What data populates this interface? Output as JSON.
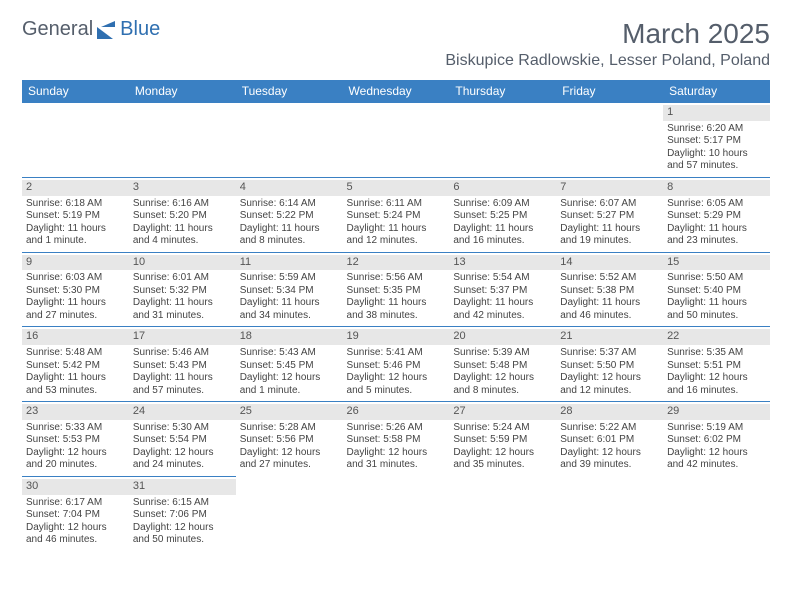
{
  "logo": {
    "part1": "General",
    "part2": "Blue",
    "color1": "#555e6b",
    "color2": "#2f6fb0"
  },
  "title": "March 2025",
  "location": "Biskupice Radlowskie, Lesser Poland, Poland",
  "colors": {
    "header_bg": "#3a80c3",
    "header_fg": "#ffffff",
    "daynum_bg": "#e7e7e7",
    "border": "#3a80c3"
  },
  "day_headers": [
    "Sunday",
    "Monday",
    "Tuesday",
    "Wednesday",
    "Thursday",
    "Friday",
    "Saturday"
  ],
  "weeks": [
    [
      null,
      null,
      null,
      null,
      null,
      null,
      {
        "n": "1",
        "sr": "Sunrise: 6:20 AM",
        "ss": "Sunset: 5:17 PM",
        "dl": "Daylight: 10 hours and 57 minutes."
      }
    ],
    [
      {
        "n": "2",
        "sr": "Sunrise: 6:18 AM",
        "ss": "Sunset: 5:19 PM",
        "dl": "Daylight: 11 hours and 1 minute."
      },
      {
        "n": "3",
        "sr": "Sunrise: 6:16 AM",
        "ss": "Sunset: 5:20 PM",
        "dl": "Daylight: 11 hours and 4 minutes."
      },
      {
        "n": "4",
        "sr": "Sunrise: 6:14 AM",
        "ss": "Sunset: 5:22 PM",
        "dl": "Daylight: 11 hours and 8 minutes."
      },
      {
        "n": "5",
        "sr": "Sunrise: 6:11 AM",
        "ss": "Sunset: 5:24 PM",
        "dl": "Daylight: 11 hours and 12 minutes."
      },
      {
        "n": "6",
        "sr": "Sunrise: 6:09 AM",
        "ss": "Sunset: 5:25 PM",
        "dl": "Daylight: 11 hours and 16 minutes."
      },
      {
        "n": "7",
        "sr": "Sunrise: 6:07 AM",
        "ss": "Sunset: 5:27 PM",
        "dl": "Daylight: 11 hours and 19 minutes."
      },
      {
        "n": "8",
        "sr": "Sunrise: 6:05 AM",
        "ss": "Sunset: 5:29 PM",
        "dl": "Daylight: 11 hours and 23 minutes."
      }
    ],
    [
      {
        "n": "9",
        "sr": "Sunrise: 6:03 AM",
        "ss": "Sunset: 5:30 PM",
        "dl": "Daylight: 11 hours and 27 minutes."
      },
      {
        "n": "10",
        "sr": "Sunrise: 6:01 AM",
        "ss": "Sunset: 5:32 PM",
        "dl": "Daylight: 11 hours and 31 minutes."
      },
      {
        "n": "11",
        "sr": "Sunrise: 5:59 AM",
        "ss": "Sunset: 5:34 PM",
        "dl": "Daylight: 11 hours and 34 minutes."
      },
      {
        "n": "12",
        "sr": "Sunrise: 5:56 AM",
        "ss": "Sunset: 5:35 PM",
        "dl": "Daylight: 11 hours and 38 minutes."
      },
      {
        "n": "13",
        "sr": "Sunrise: 5:54 AM",
        "ss": "Sunset: 5:37 PM",
        "dl": "Daylight: 11 hours and 42 minutes."
      },
      {
        "n": "14",
        "sr": "Sunrise: 5:52 AM",
        "ss": "Sunset: 5:38 PM",
        "dl": "Daylight: 11 hours and 46 minutes."
      },
      {
        "n": "15",
        "sr": "Sunrise: 5:50 AM",
        "ss": "Sunset: 5:40 PM",
        "dl": "Daylight: 11 hours and 50 minutes."
      }
    ],
    [
      {
        "n": "16",
        "sr": "Sunrise: 5:48 AM",
        "ss": "Sunset: 5:42 PM",
        "dl": "Daylight: 11 hours and 53 minutes."
      },
      {
        "n": "17",
        "sr": "Sunrise: 5:46 AM",
        "ss": "Sunset: 5:43 PM",
        "dl": "Daylight: 11 hours and 57 minutes."
      },
      {
        "n": "18",
        "sr": "Sunrise: 5:43 AM",
        "ss": "Sunset: 5:45 PM",
        "dl": "Daylight: 12 hours and 1 minute."
      },
      {
        "n": "19",
        "sr": "Sunrise: 5:41 AM",
        "ss": "Sunset: 5:46 PM",
        "dl": "Daylight: 12 hours and 5 minutes."
      },
      {
        "n": "20",
        "sr": "Sunrise: 5:39 AM",
        "ss": "Sunset: 5:48 PM",
        "dl": "Daylight: 12 hours and 8 minutes."
      },
      {
        "n": "21",
        "sr": "Sunrise: 5:37 AM",
        "ss": "Sunset: 5:50 PM",
        "dl": "Daylight: 12 hours and 12 minutes."
      },
      {
        "n": "22",
        "sr": "Sunrise: 5:35 AM",
        "ss": "Sunset: 5:51 PM",
        "dl": "Daylight: 12 hours and 16 minutes."
      }
    ],
    [
      {
        "n": "23",
        "sr": "Sunrise: 5:33 AM",
        "ss": "Sunset: 5:53 PM",
        "dl": "Daylight: 12 hours and 20 minutes."
      },
      {
        "n": "24",
        "sr": "Sunrise: 5:30 AM",
        "ss": "Sunset: 5:54 PM",
        "dl": "Daylight: 12 hours and 24 minutes."
      },
      {
        "n": "25",
        "sr": "Sunrise: 5:28 AM",
        "ss": "Sunset: 5:56 PM",
        "dl": "Daylight: 12 hours and 27 minutes."
      },
      {
        "n": "26",
        "sr": "Sunrise: 5:26 AM",
        "ss": "Sunset: 5:58 PM",
        "dl": "Daylight: 12 hours and 31 minutes."
      },
      {
        "n": "27",
        "sr": "Sunrise: 5:24 AM",
        "ss": "Sunset: 5:59 PM",
        "dl": "Daylight: 12 hours and 35 minutes."
      },
      {
        "n": "28",
        "sr": "Sunrise: 5:22 AM",
        "ss": "Sunset: 6:01 PM",
        "dl": "Daylight: 12 hours and 39 minutes."
      },
      {
        "n": "29",
        "sr": "Sunrise: 5:19 AM",
        "ss": "Sunset: 6:02 PM",
        "dl": "Daylight: 12 hours and 42 minutes."
      }
    ],
    [
      {
        "n": "30",
        "sr": "Sunrise: 6:17 AM",
        "ss": "Sunset: 7:04 PM",
        "dl": "Daylight: 12 hours and 46 minutes."
      },
      {
        "n": "31",
        "sr": "Sunrise: 6:15 AM",
        "ss": "Sunset: 7:06 PM",
        "dl": "Daylight: 12 hours and 50 minutes."
      },
      null,
      null,
      null,
      null,
      null
    ]
  ]
}
